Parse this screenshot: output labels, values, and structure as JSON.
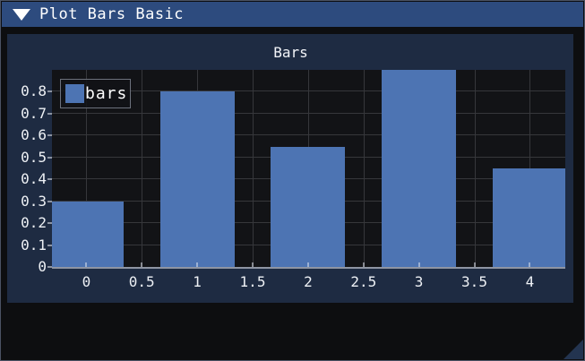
{
  "window": {
    "title": "Plot Bars Basic",
    "collapse_icon": "triangle-down"
  },
  "chart_data": {
    "type": "bar",
    "title": "Bars",
    "series": [
      {
        "name": "bars",
        "values": [
          0.3,
          0.8,
          0.55,
          0.9,
          0.45
        ]
      }
    ],
    "x": [
      0,
      1,
      2,
      3,
      4
    ],
    "bar_width": 0.67,
    "xlim": [
      -0.31,
      4.32
    ],
    "ylim": [
      0,
      0.9
    ],
    "x_ticks": [
      0,
      0.5,
      1,
      1.5,
      2,
      2.5,
      3,
      3.5,
      4
    ],
    "x_tick_labels": [
      "0",
      "0.5",
      "1",
      "1.5",
      "2",
      "2.5",
      "3",
      "3.5",
      "4"
    ],
    "y_ticks": [
      0,
      0.1,
      0.2,
      0.3,
      0.4,
      0.5,
      0.6,
      0.7,
      0.8
    ],
    "y_tick_labels": [
      "0",
      "0.1",
      "0.2",
      "0.3",
      "0.4",
      "0.5",
      "0.6",
      "0.7",
      "0.8"
    ],
    "grid": true,
    "legend_position": "top-left",
    "note": "bar at x=3 is clipped at plot top"
  },
  "colors": {
    "titlebar": "#2d4b7e",
    "window_bg": "#0d0e10",
    "panel_bg": "#1e2b42",
    "plot_bg": "#121316",
    "gridline": "#36373b",
    "axis": "#8e95a3",
    "bar": "#4d74b3",
    "text": "#eef1f5"
  }
}
